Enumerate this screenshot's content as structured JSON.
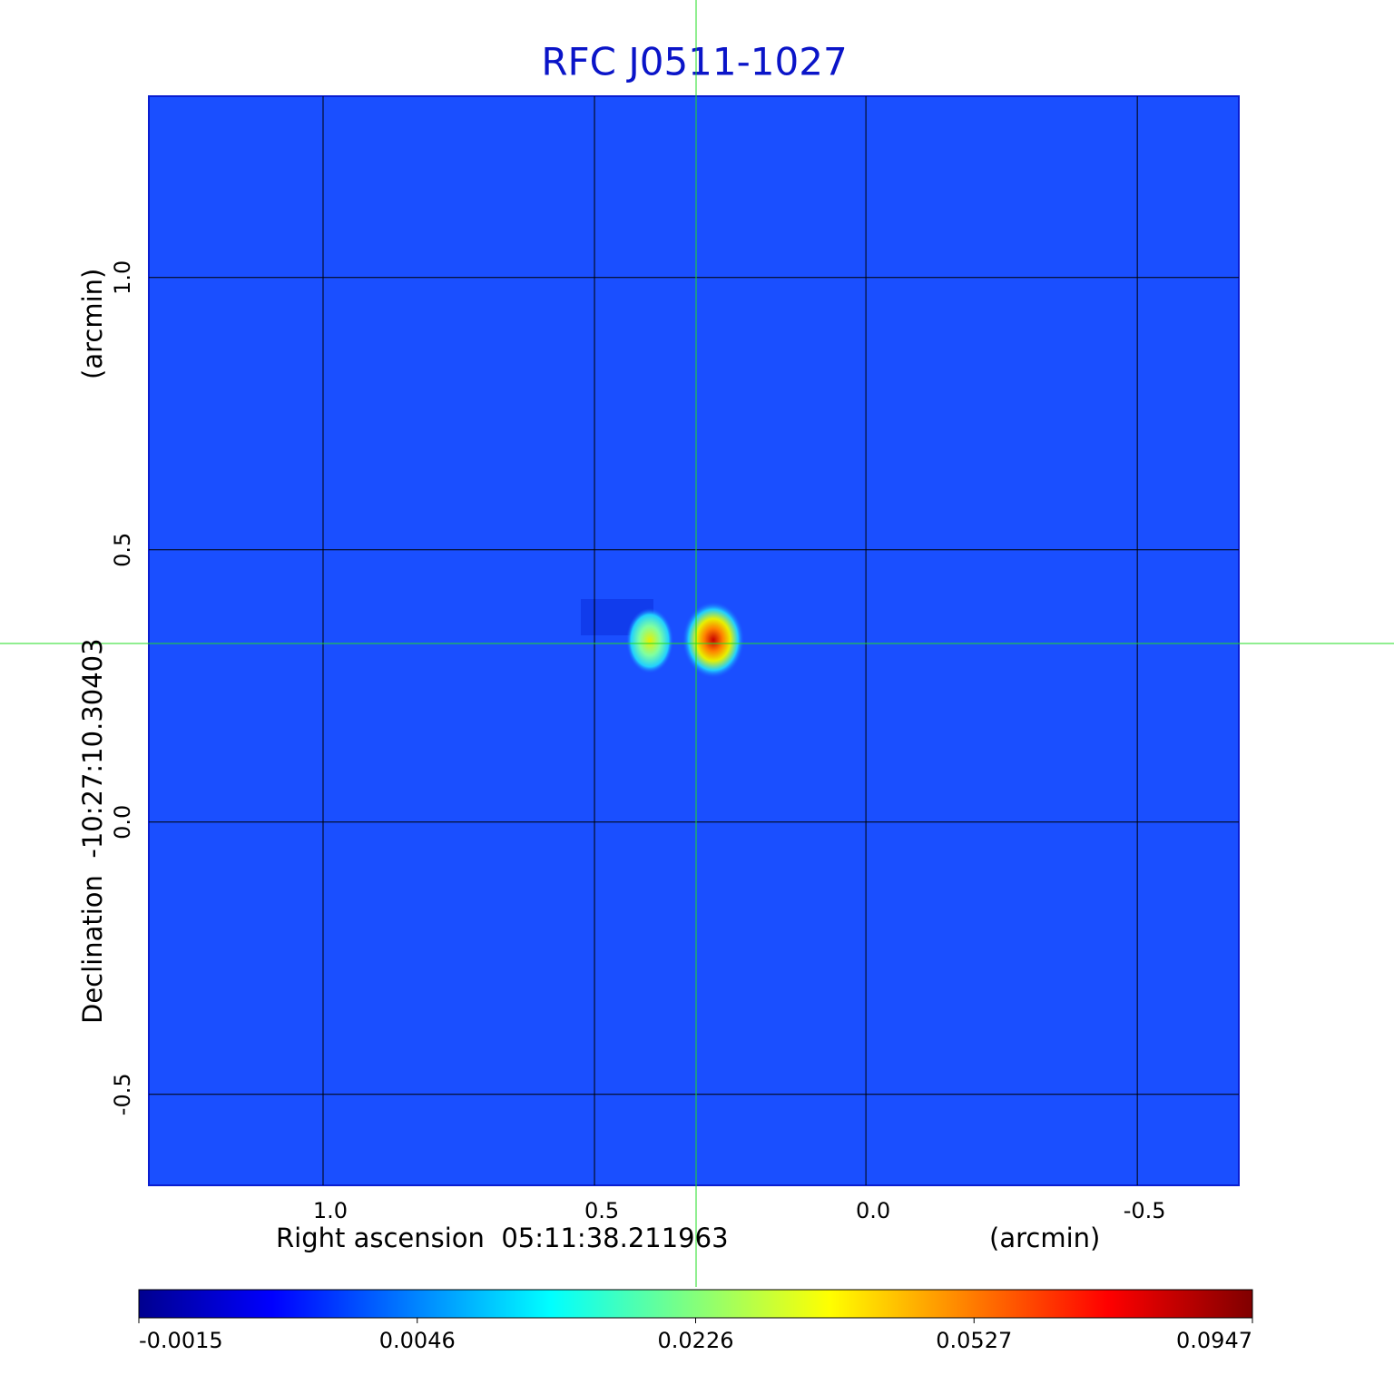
{
  "chart_data": {
    "type": "image",
    "title": "RFC J0511-1027",
    "x_label": "Right ascension  05:11:38.211963",
    "x_unit": "(arcmin)",
    "y_label": "Declination  -10:27:10.30403",
    "y_unit": "(arcmin)",
    "xlim": [
      1.321,
      -0.687
    ],
    "ylim": [
      -0.667,
      1.333
    ],
    "xticks": [
      {
        "value": 1,
        "label": "1.0"
      },
      0.5,
      {
        "value": 0,
        "label": "0.0"
      },
      -0.5
    ],
    "yticks": [
      {
        "value": 1,
        "label": "1.0"
      },
      0.5,
      {
        "value": 0,
        "label": "0.0"
      },
      -0.5
    ],
    "grid": true,
    "colormap": "jet",
    "colorbar_ticks": [
      -0.0015,
      0.0046,
      0.0226,
      0.0527,
      0.0947
    ],
    "title_color": "#0a14c8"
  }
}
